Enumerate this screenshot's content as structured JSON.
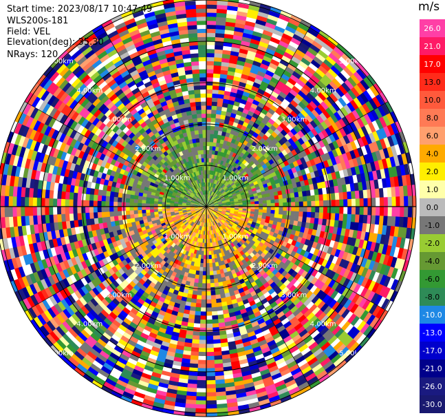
{
  "header": {
    "start_time": "Start time: 2023/08/17 10:47:49",
    "instrument": "WLS200s-181",
    "field": "Field: VEL",
    "elevation": "Elevation(deg): 35.30",
    "nrays": "NRays: 120"
  },
  "chart_data": {
    "type": "heatmap",
    "projection": "polar PPI",
    "field": "VEL",
    "unit": "m/s",
    "n_rays": 120,
    "range_ring_labels": [
      "1.00km",
      "2.00km",
      "3.00km",
      "4.00km",
      "5.00km"
    ],
    "ring_label_angles_deg": [
      -45,
      45,
      135,
      225
    ],
    "colorbar": {
      "unit": "m/s",
      "ticks": [
        "26.0",
        "21.0",
        "17.0",
        "13.0",
        "10.0",
        "8.0",
        "6.0",
        "4.0",
        "2.0",
        "1.0",
        "0.0",
        "-1.0",
        "-2.0",
        "-4.0",
        "-6.0",
        "-8.0",
        "-10.0",
        "-13.0",
        "-17.0",
        "-21.0",
        "-26.0",
        "-30.0"
      ],
      "colors": [
        "#ff3fa6",
        "#ff1a66",
        "#ff0000",
        "#ff2b1a",
        "#ff5a3c",
        "#ff7a55",
        "#ffa06e",
        "#ffaa00",
        "#ffee00",
        "#ffffaa",
        "#bbbbbb",
        "#777777",
        "#99cc33",
        "#669933",
        "#339933",
        "#2e8b57",
        "#1e88e5",
        "#0000ff",
        "#0000cc",
        "#00008b",
        "#1a1a80",
        "#191970"
      ]
    },
    "pattern": {
      "inner_approaching_sector": "north (green/olive, negative velocity)",
      "inner_receding_sector": "south (yellow/orange, positive velocity)",
      "outer_ranges": "noisy random velocities across full scale"
    }
  }
}
